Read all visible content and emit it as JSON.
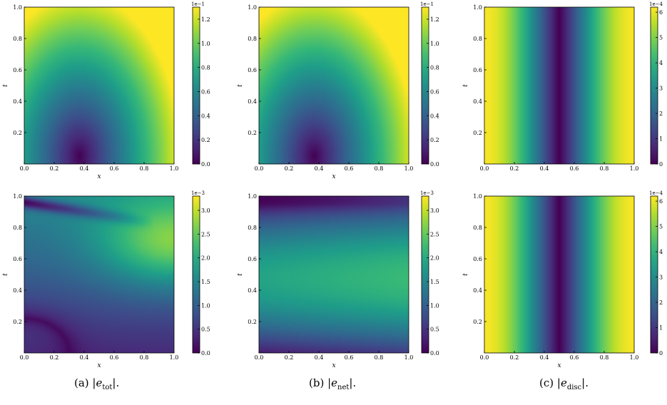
{
  "chart_data": [
    {
      "type": "heatmap",
      "panel": "a-top",
      "xlabel": "x",
      "ylabel": "t",
      "xticks": [
        "0.0",
        "0.2",
        "0.4",
        "0.6",
        "0.8",
        "1.0"
      ],
      "yticks": [
        "0.2",
        "0.4",
        "0.6",
        "0.8",
        "1.0"
      ],
      "xlim": [
        0,
        1
      ],
      "ylim": [
        0,
        1
      ],
      "colormap": "viridis",
      "color_range": [
        0,
        1.3
      ],
      "color_scale_label": "1e−1",
      "cbar_ticks": [
        "0.0",
        "0.2",
        "0.4",
        "0.6",
        "0.8",
        "1.0",
        "1.2"
      ],
      "field": "tot1"
    },
    {
      "type": "heatmap",
      "panel": "b-top",
      "xlabel": "x",
      "ylabel": "t",
      "xticks": [
        "0.0",
        "0.2",
        "0.4",
        "0.6",
        "0.8",
        "1.0"
      ],
      "yticks": [
        "0.2",
        "0.4",
        "0.6",
        "0.8",
        "1.0"
      ],
      "xlim": [
        0,
        1
      ],
      "ylim": [
        0,
        1
      ],
      "colormap": "viridis",
      "color_range": [
        0,
        1.3
      ],
      "color_scale_label": "1e−1",
      "cbar_ticks": [
        "0.0",
        "0.2",
        "0.4",
        "0.6",
        "0.8",
        "1.0",
        "1.2"
      ],
      "field": "net1"
    },
    {
      "type": "heatmap",
      "panel": "c-top",
      "xlabel": "",
      "ylabel": "t",
      "xticks": [
        "0.0",
        "0.2",
        "0.4",
        "0.6",
        "0.8",
        "1.0"
      ],
      "yticks": [
        "0.2",
        "0.4",
        "0.6",
        "0.8",
        "1.0"
      ],
      "xlim": [
        0,
        1
      ],
      "ylim": [
        0,
        1
      ],
      "colormap": "viridis",
      "color_range": [
        0,
        6.2
      ],
      "color_scale_label": "1e−4",
      "cbar_ticks": [
        "0",
        "1",
        "2",
        "3",
        "4",
        "5",
        "6"
      ],
      "field": "disc"
    },
    {
      "type": "heatmap",
      "panel": "a-bottom",
      "xlabel": "x",
      "ylabel": "t",
      "xticks": [
        "0.0",
        "0.2",
        "0.4",
        "0.6",
        "0.8",
        "1.0"
      ],
      "yticks": [
        "0.2",
        "0.4",
        "0.6",
        "0.8",
        "1.0"
      ],
      "xlim": [
        0,
        1
      ],
      "ylim": [
        0,
        1
      ],
      "colormap": "viridis",
      "color_range": [
        0,
        3.3
      ],
      "color_scale_label": "1e−3",
      "cbar_ticks": [
        "0.0",
        "0.5",
        "1.0",
        "1.5",
        "2.0",
        "2.5",
        "3.0"
      ],
      "field": "tot2"
    },
    {
      "type": "heatmap",
      "panel": "b-bottom",
      "xlabel": "x",
      "ylabel": "t",
      "xticks": [
        "0.0",
        "0.2",
        "0.4",
        "0.6",
        "0.8",
        "1.0"
      ],
      "yticks": [
        "0.2",
        "0.4",
        "0.6",
        "0.8",
        "1.0"
      ],
      "xlim": [
        0,
        1
      ],
      "ylim": [
        0,
        1
      ],
      "colormap": "viridis",
      "color_range": [
        0,
        3.3
      ],
      "color_scale_label": "1e−3",
      "cbar_ticks": [
        "0.0",
        "0.5",
        "1.0",
        "1.5",
        "2.0",
        "2.5",
        "3.0"
      ],
      "field": "net2"
    },
    {
      "type": "heatmap",
      "panel": "c-bottom",
      "xlabel": "x",
      "ylabel": "t",
      "xticks": [
        "0.0",
        "0.2",
        "0.4",
        "0.6",
        "0.8",
        "1.0"
      ],
      "yticks": [
        "0.2",
        "0.4",
        "0.6",
        "0.8",
        "1.0"
      ],
      "xlim": [
        0,
        1
      ],
      "ylim": [
        0,
        1
      ],
      "colormap": "viridis",
      "color_range": [
        0,
        6.2
      ],
      "color_scale_label": "1e−4",
      "cbar_ticks": [
        "0",
        "1",
        "2",
        "3",
        "4",
        "5",
        "6"
      ],
      "field": "disc"
    }
  ],
  "captions": [
    {
      "prefix": "(a) |",
      "var": "e",
      "sub": "tot",
      "suffix": "|."
    },
    {
      "prefix": "(b) |",
      "var": "e",
      "sub": "net",
      "suffix": "|."
    },
    {
      "prefix": "(c) |",
      "var": "e",
      "sub": "disc",
      "suffix": "|."
    }
  ]
}
